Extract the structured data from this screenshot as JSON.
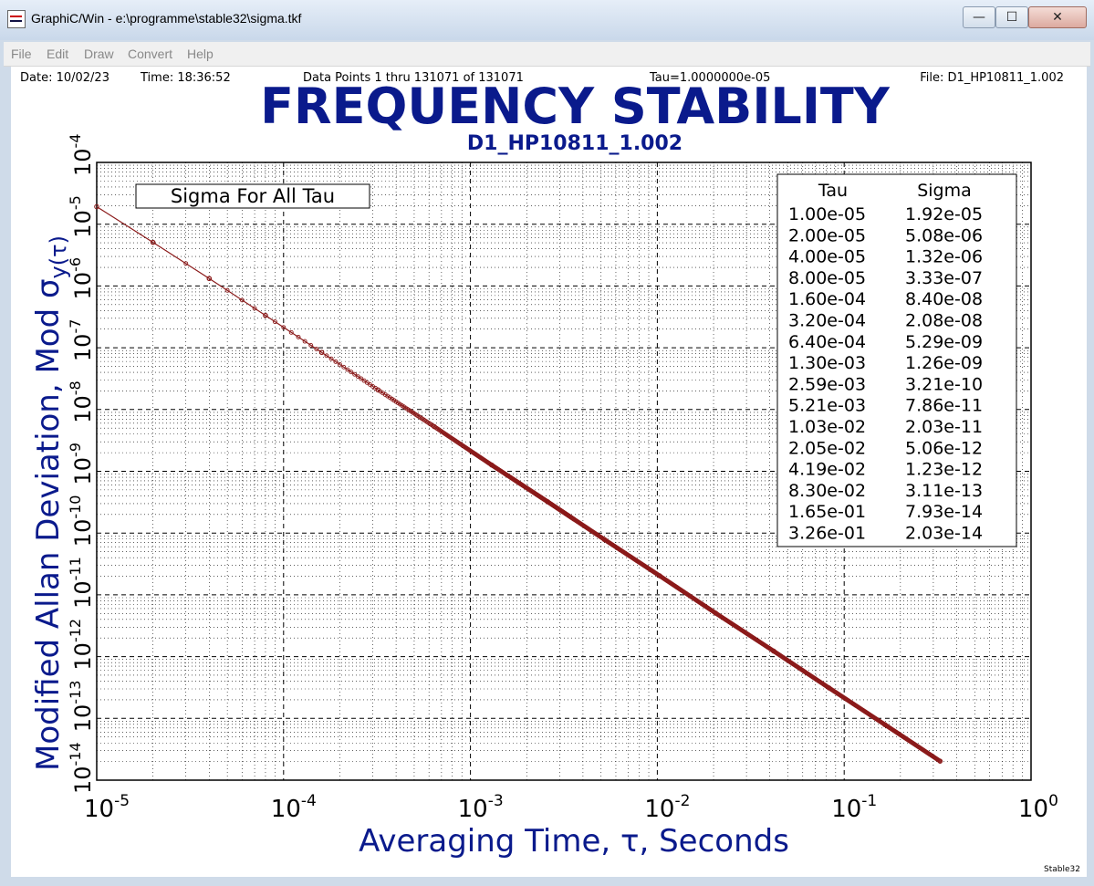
{
  "window": {
    "title": "GraphiC/Win - e:\\programme\\stable32\\sigma.tkf",
    "min_glyph": "—",
    "max_glyph": "☐",
    "close_glyph": "✕"
  },
  "menu": [
    "File",
    "Edit",
    "Draw",
    "Convert",
    "Help"
  ],
  "header": {
    "date": "Date: 10/02/23",
    "time": "Time: 18:36:52",
    "points": "Data Points 1 thru 131071 of 131071",
    "tau": "Tau=1.0000000e-05",
    "file": "File: D1_HP10811_1.002"
  },
  "chart_data": {
    "type": "scatter",
    "title": "FREQUENCY STABILITY",
    "subtitle": "D1_HP10811_1.002",
    "annotation": "Sigma For All Tau",
    "xlabel": "Averaging Time, τ, Seconds",
    "ylabel": "Modified Allan Deviation, Mod σ",
    "ylabel_tau": "y(τ)",
    "x_scale": "log",
    "y_scale": "log",
    "xlim": [
      1e-05,
      1
    ],
    "ylim": [
      1e-14,
      0.0001
    ],
    "grid": true,
    "x_ticks": [
      {
        "base": "10",
        "exp": "-5",
        "value": 1e-05
      },
      {
        "base": "10",
        "exp": "-4",
        "value": 0.0001
      },
      {
        "base": "10",
        "exp": "-3",
        "value": 0.001
      },
      {
        "base": "10",
        "exp": "-2",
        "value": 0.01
      },
      {
        "base": "10",
        "exp": "-1",
        "value": 0.1
      },
      {
        "base": "10",
        "exp": "0",
        "value": 1
      }
    ],
    "y_ticks": [
      {
        "base": "10",
        "exp": "-4",
        "value": 0.0001
      },
      {
        "base": "10",
        "exp": "-5",
        "value": 1e-05
      },
      {
        "base": "10",
        "exp": "-6",
        "value": 1e-06
      },
      {
        "base": "10",
        "exp": "-7",
        "value": 1e-07
      },
      {
        "base": "10",
        "exp": "-8",
        "value": 1e-08
      },
      {
        "base": "10",
        "exp": "-9",
        "value": 1e-09
      },
      {
        "base": "10",
        "exp": "-10",
        "value": 1e-10
      },
      {
        "base": "10",
        "exp": "-11",
        "value": 1e-11
      },
      {
        "base": "10",
        "exp": "-12",
        "value": 1e-12
      },
      {
        "base": "10",
        "exp": "-13",
        "value": 1e-13
      },
      {
        "base": "10",
        "exp": "-14",
        "value": 1e-14
      }
    ],
    "table_headers": [
      "Tau",
      "Sigma"
    ],
    "table": [
      [
        "1.00e-05",
        "1.92e-05"
      ],
      [
        "2.00e-05",
        "5.08e-06"
      ],
      [
        "4.00e-05",
        "1.32e-06"
      ],
      [
        "8.00e-05",
        "3.33e-07"
      ],
      [
        "1.60e-04",
        "8.40e-08"
      ],
      [
        "3.20e-04",
        "2.08e-08"
      ],
      [
        "6.40e-04",
        "5.29e-09"
      ],
      [
        "1.30e-03",
        "1.26e-09"
      ],
      [
        "2.59e-03",
        "3.21e-10"
      ],
      [
        "5.21e-03",
        "7.86e-11"
      ],
      [
        "1.03e-02",
        "2.03e-11"
      ],
      [
        "2.05e-02",
        "5.06e-12"
      ],
      [
        "4.19e-02",
        "1.23e-12"
      ],
      [
        "8.30e-02",
        "3.11e-13"
      ],
      [
        "1.65e-01",
        "7.93e-14"
      ],
      [
        "3.26e-01",
        "2.03e-14"
      ]
    ],
    "series_color": "#8b1a1a",
    "title_color": "#0a1a8c"
  },
  "footer": {
    "brand": "Stable32"
  }
}
